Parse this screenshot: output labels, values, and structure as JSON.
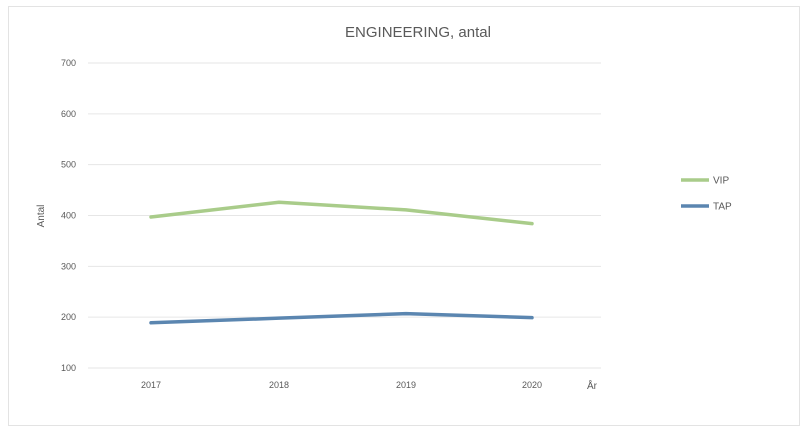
{
  "chart_data": {
    "type": "line",
    "title": "ENGINEERING, antal",
    "xlabel": "År",
    "ylabel": "Antal",
    "categories": [
      "2017",
      "2018",
      "2019",
      "2020"
    ],
    "series": [
      {
        "name": "VIP",
        "color": "#a9cc8a",
        "values": [
          397,
          426,
          411,
          384
        ]
      },
      {
        "name": "TAP",
        "color": "#5b86b0",
        "values": [
          189,
          198,
          207,
          199
        ]
      }
    ],
    "ylim": [
      100,
      700
    ],
    "yticks": [
      "100",
      "200",
      "300",
      "400",
      "500",
      "600",
      "700"
    ],
    "grid": true,
    "legend_position": "right"
  }
}
